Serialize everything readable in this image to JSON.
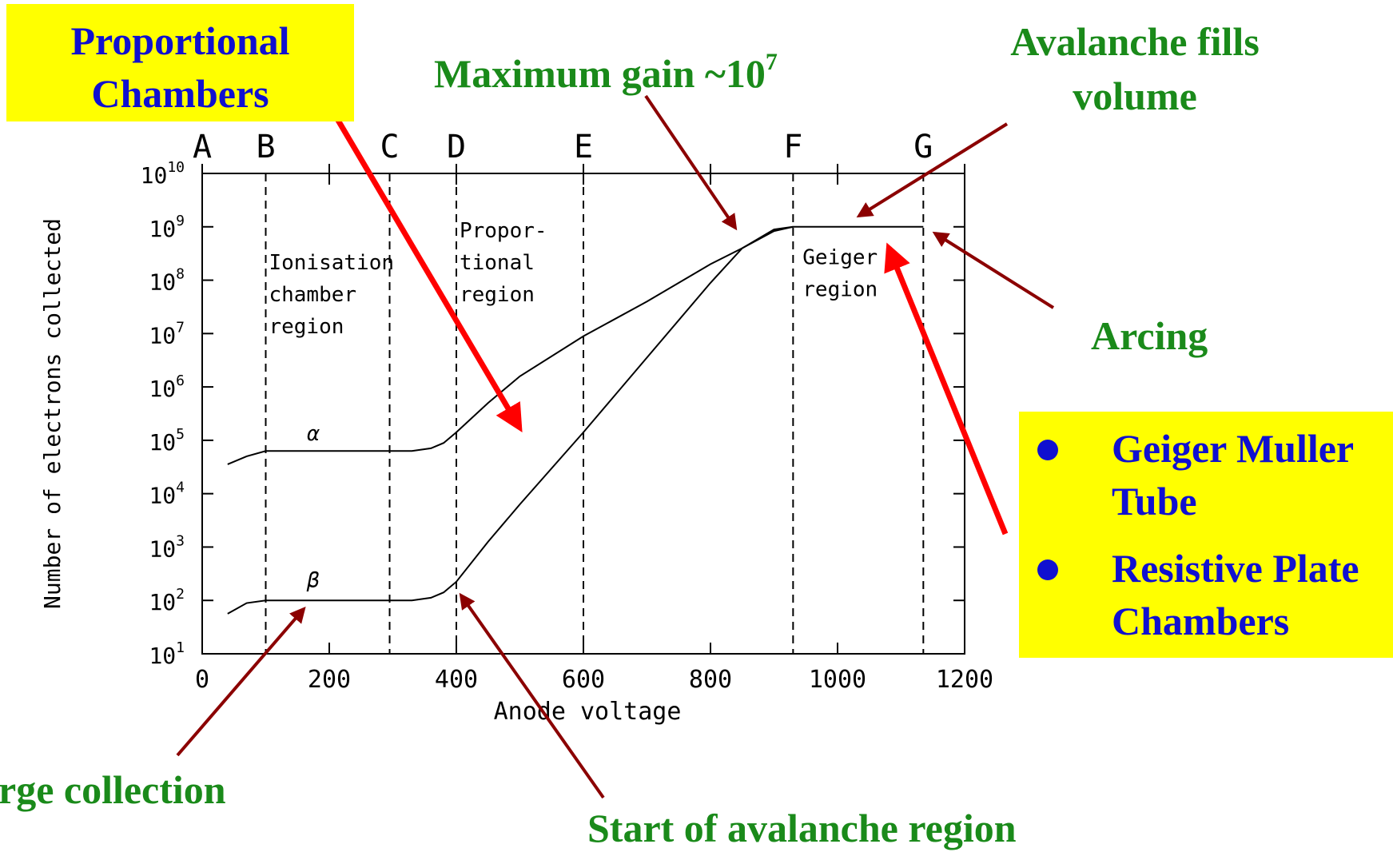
{
  "annotations": {
    "proportional_chambers": "Proportional\nChambers",
    "maximum_gain_prefix": "Maximum gain ~10",
    "maximum_gain_exp": "7",
    "avalanche_fills": "Avalanche fills\nvolume",
    "arcing": "Arcing",
    "charge_collection": "rge collection",
    "start_avalanche": "Start of avalanche region",
    "box_items": [
      "Geiger Muller\nTube",
      "Resistive Plate\nChambers"
    ]
  },
  "colors": {
    "green_text": "#1a8a1a",
    "blue_text": "#1010d0",
    "yellow_box": "#ffff00",
    "red_arrow": "#ff0000",
    "dark_red_arrow": "#8b0000"
  },
  "chart_data": {
    "type": "line",
    "xlabel": "Anode voltage",
    "ylabel": "Number of electrons collected",
    "xlim": [
      0,
      1200
    ],
    "ylim_log10": [
      1,
      10
    ],
    "x_ticks": [
      "0",
      "200",
      "400",
      "600",
      "800",
      "1000",
      "1200"
    ],
    "y_ticks": [
      {
        "base": "10",
        "exp": "1"
      },
      {
        "base": "10",
        "exp": "2"
      },
      {
        "base": "10",
        "exp": "3"
      },
      {
        "base": "10",
        "exp": "4"
      },
      {
        "base": "10",
        "exp": "5"
      },
      {
        "base": "10",
        "exp": "6"
      },
      {
        "base": "10",
        "exp": "7"
      },
      {
        "base": "10",
        "exp": "8"
      },
      {
        "base": "10",
        "exp": "9"
      },
      {
        "base": "10",
        "exp": "10"
      }
    ],
    "top_letters": [
      {
        "label": "A",
        "x": 0
      },
      {
        "label": "B",
        "x": 100
      },
      {
        "label": "C",
        "x": 295
      },
      {
        "label": "D",
        "x": 400
      },
      {
        "label": "E",
        "x": 600
      },
      {
        "label": "F",
        "x": 930
      },
      {
        "label": "G",
        "x": 1135
      }
    ],
    "boundaries_x": [
      100,
      295,
      400,
      600,
      930,
      1135
    ],
    "region_labels": [
      {
        "text": "Ionisation\nchamber\nregion",
        "x": 105,
        "y_log10": 8.2
      },
      {
        "text": "Propor-\ntional\nregion",
        "x": 405,
        "y_log10": 8.8
      },
      {
        "text": "Geiger\nregion",
        "x": 945,
        "y_log10": 8.3
      }
    ],
    "series": [
      {
        "name": "α",
        "x": [
          40,
          70,
          100,
          200,
          300,
          330,
          360,
          380,
          400,
          450,
          500,
          600,
          700,
          800,
          850,
          900,
          930,
          1000,
          1100,
          1135
        ],
        "y_log10": [
          4.55,
          4.7,
          4.8,
          4.8,
          4.8,
          4.8,
          4.85,
          4.95,
          5.15,
          5.7,
          6.2,
          6.95,
          7.6,
          8.3,
          8.6,
          8.92,
          9.0,
          9.0,
          9.0,
          9.0
        ]
      },
      {
        "name": "β",
        "x": [
          40,
          70,
          100,
          200,
          300,
          330,
          360,
          380,
          400,
          450,
          500,
          600,
          700,
          800,
          850,
          900,
          930
        ],
        "y_log10": [
          1.75,
          1.95,
          2.0,
          2.0,
          2.0,
          2.0,
          2.05,
          2.15,
          2.35,
          3.1,
          3.8,
          5.15,
          6.55,
          7.95,
          8.6,
          8.95,
          9.0
        ]
      }
    ],
    "series_labels": [
      {
        "text": "α",
        "x": 165,
        "y_log10": 5.0
      },
      {
        "text": "β",
        "x": 165,
        "y_log10": 2.25
      }
    ]
  }
}
